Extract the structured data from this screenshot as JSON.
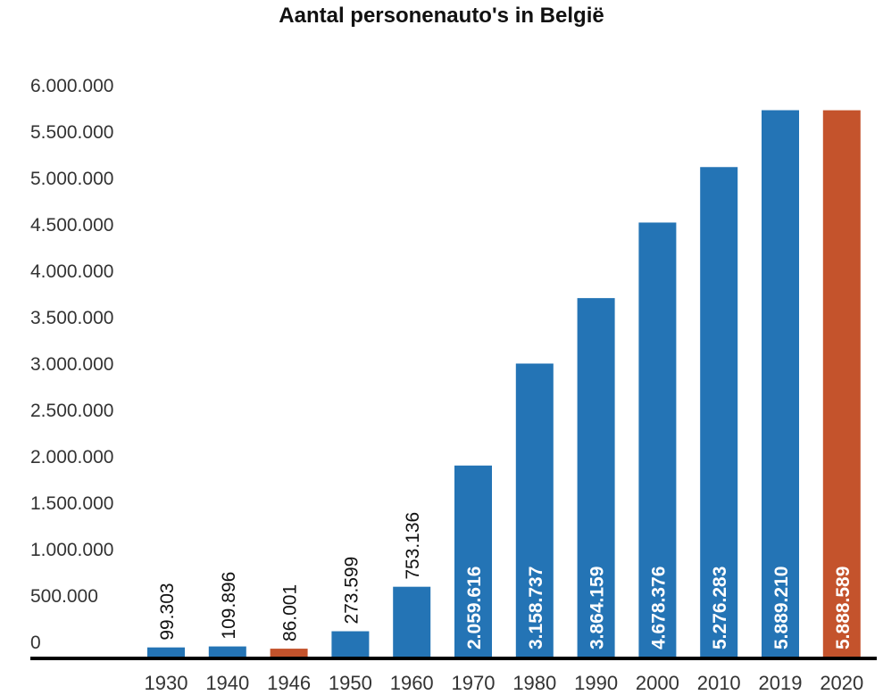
{
  "chart_data": {
    "type": "bar",
    "title": "Aantal personenauto's in België",
    "xlabel": "",
    "ylabel": "",
    "categories": [
      "1930",
      "1940",
      "1946",
      "1950",
      "1960",
      "1970",
      "1980",
      "1990",
      "2000",
      "2010",
      "2019",
      "2020"
    ],
    "values": [
      99303,
      109896,
      86001,
      273599,
      753136,
      2059616,
      3158737,
      3864159,
      4678376,
      5276283,
      5889210,
      5888589
    ],
    "data_labels": [
      "99.303",
      "109.896",
      "86.001",
      "273.599",
      "753.136",
      "2.059.616",
      "3.158.737",
      "3.864.159",
      "4.678.376",
      "5.276.283",
      "5.889.210",
      "5.888.589"
    ],
    "highlighted": [
      "1946",
      "2020"
    ],
    "ylim": [
      0,
      6000000
    ],
    "yticks": [
      0,
      500000,
      1000000,
      1500000,
      2000000,
      2500000,
      3000000,
      3500000,
      4000000,
      4500000,
      5000000,
      5500000,
      6000000
    ],
    "ytick_labels": [
      "0",
      "500.000",
      "1.000.000",
      "1.500.000",
      "2.000.000",
      "2.500.000",
      "3.000.000",
      "3.500.000",
      "4.000.000",
      "4.500.000",
      "5.000.000",
      "5.500.000",
      "6.000.000"
    ],
    "grid": false,
    "legend": "none",
    "colors": {
      "default": "#2474b5",
      "highlight": "#c4532c",
      "axis": "#000000"
    }
  }
}
